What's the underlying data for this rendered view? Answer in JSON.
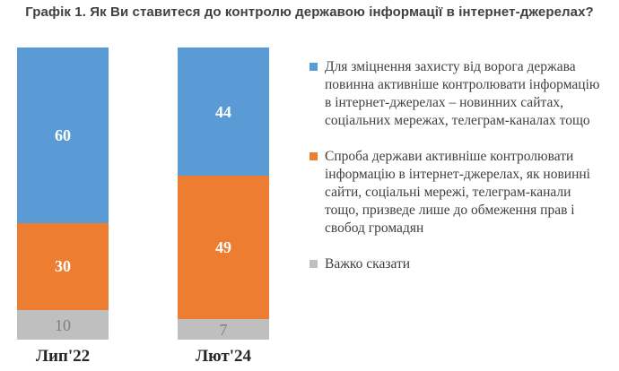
{
  "title": "Графік 1. Як Ви ставитеся до контролю державою інформації в інтернет-джерелах?",
  "chart_data": {
    "type": "bar",
    "subtype": "stacked-column",
    "title": "Графік 1. Як Ви ставитеся до контролю державою інформації в інтернет-джерелах?",
    "categories": [
      "Лип'22",
      "Лют'24"
    ],
    "series": [
      {
        "name": "Для зміцнення захисту від ворога держава повинна активніше контролювати інформацію в інтернет-джерелах – новинних сайтах, соціальних мережах, телеграм-каналах тощо",
        "values": [
          60,
          44
        ],
        "color": "#5B9BD5",
        "label_color": "#FFFFFF",
        "label_weight": "700"
      },
      {
        "name": "Спроба держави активніше контролювати інформацію в інтернет-джерелах, як новинні сайти, соціальні мережі, телеграм-канали тощо, призведе лише до обмеження прав і свобод громадян",
        "values": [
          30,
          49
        ],
        "color": "#ED7D31",
        "label_color": "#FFFFFF",
        "label_weight": "700"
      },
      {
        "name": "Важко сказати",
        "values": [
          10,
          7
        ],
        "color": "#BFBFBF",
        "label_color": "#7F7F7F",
        "label_weight": "400"
      }
    ],
    "ylim": [
      0,
      100
    ],
    "grid": false,
    "axis_lines": false,
    "value_labels": true,
    "legend_position": "right",
    "stack_order_top_to_bottom": true
  }
}
